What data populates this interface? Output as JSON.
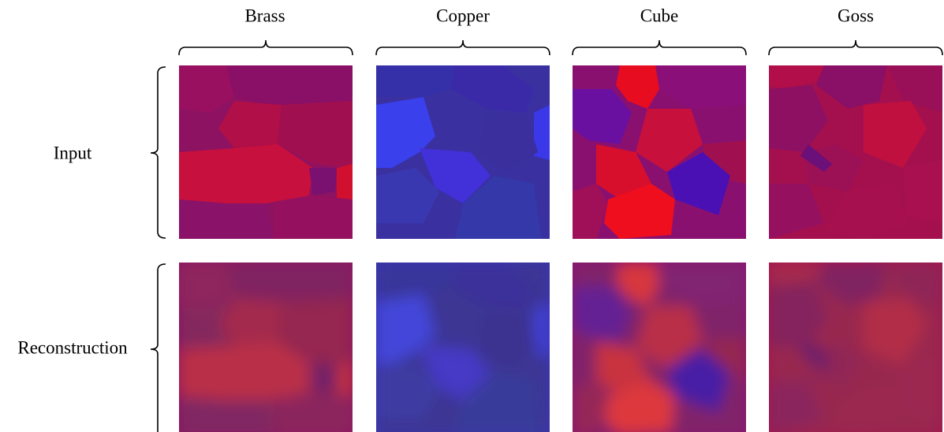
{
  "column_labels": [
    "Brass",
    "Copper",
    "Cube",
    "Goss"
  ],
  "row_labels": [
    "Input",
    "Reconstruction"
  ]
}
